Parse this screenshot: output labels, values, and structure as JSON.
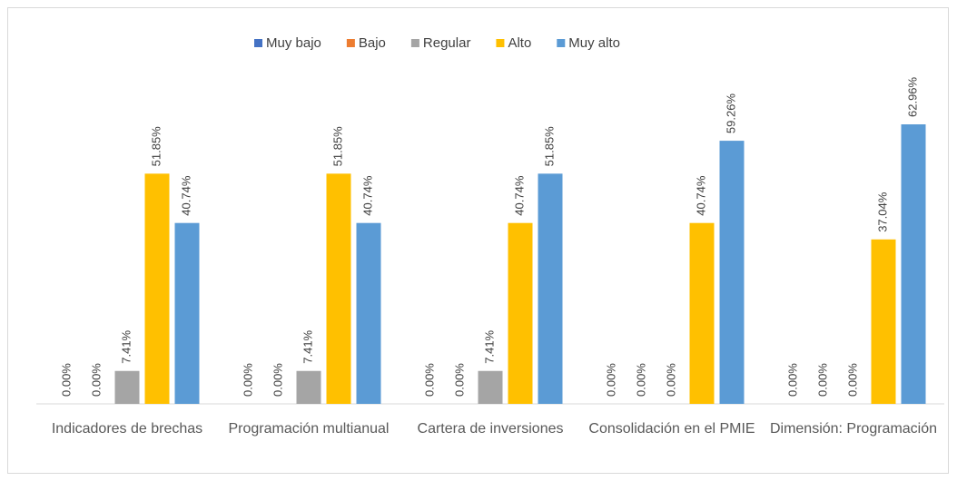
{
  "chart_data": {
    "type": "bar",
    "categories": [
      "Indicadores de brechas",
      "Programación multianual",
      "Cartera de inversiones",
      "Consolidación en el PMIE",
      "Dimensión: Programación"
    ],
    "series": [
      {
        "name": "Muy bajo",
        "color": "#4472c4",
        "values": [
          0,
          0,
          0,
          0,
          0
        ],
        "value_labels": [
          "0.00%",
          "0.00%",
          "0.00%",
          "0.00%",
          "0.00%"
        ]
      },
      {
        "name": "Bajo",
        "color": "#ed7d31",
        "values": [
          0,
          0,
          0,
          0,
          0
        ],
        "value_labels": [
          "0.00%",
          "0.00%",
          "0.00%",
          "0.00%",
          "0.00%"
        ]
      },
      {
        "name": "Regular",
        "color": "#a5a5a5",
        "values": [
          7.41,
          7.41,
          7.41,
          0,
          0
        ],
        "value_labels": [
          "7.41%",
          "7.41%",
          "7.41%",
          "0.00%",
          "0.00%"
        ]
      },
      {
        "name": "Alto",
        "color": "#ffc000",
        "values": [
          51.85,
          51.85,
          40.74,
          40.74,
          37.04
        ],
        "value_labels": [
          "51.85%",
          "51.85%",
          "40.74%",
          "40.74%",
          "37.04%"
        ]
      },
      {
        "name": "Muy alto",
        "color": "#5b9bd5",
        "values": [
          40.74,
          40.74,
          51.85,
          59.26,
          62.96
        ],
        "value_labels": [
          "40.74%",
          "40.74%",
          "51.85%",
          "59.26%",
          "62.96%"
        ]
      }
    ],
    "legend": "top"
  }
}
